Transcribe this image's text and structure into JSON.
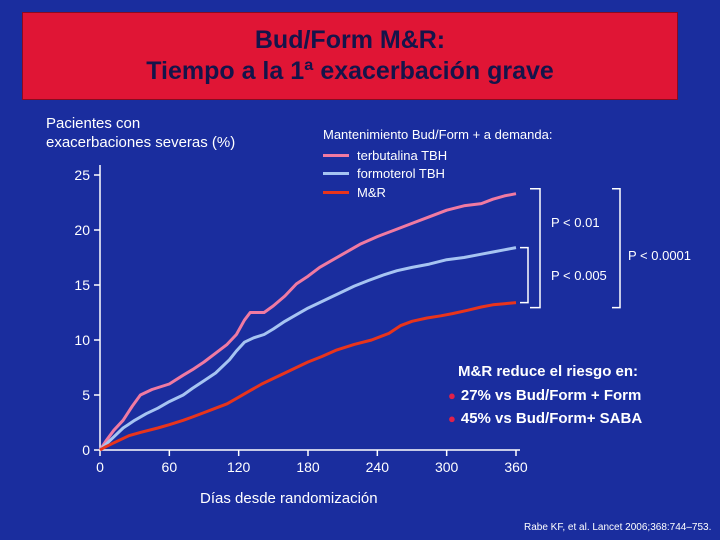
{
  "slide": {
    "title_line1": "Bud/Form M&R:",
    "title_line2": "Tiempo a la 1ª exacerbación grave",
    "y_axis_label_line1": "Pacientes con",
    "y_axis_label_line2": "exacerbaciones severas (%)",
    "x_axis_label": "Días desde randomización",
    "legend_title": "Mantenimiento Bud/Form  + a demanda:",
    "pvalues": [
      "P < 0.01",
      "P < 0.0001",
      "P < 0.005"
    ],
    "note_title": "M&R reduce el riesgo en:",
    "note_items": [
      "27% vs Bud/Form + Form",
      "45% vs Bud/Form+ SABA"
    ],
    "citation": "Rabe KF, et al. Lancet 2006;368:744–753."
  },
  "colors": {
    "background": "#1a2d9e",
    "banner": "#e01535",
    "title_text": "#15144a",
    "terbutaline": "#f07aa2",
    "formoterol": "#a6c4f2",
    "mr": "#e8341c",
    "bullet": "#e0204a"
  },
  "chart_data": {
    "type": "line",
    "title": "Tiempo a la 1ª exacerbación grave",
    "xlabel": "Días desde randomización",
    "ylabel": "Pacientes con exacerbaciones severas (%)",
    "xlim": [
      0,
      360
    ],
    "ylim": [
      0,
      25
    ],
    "xticks": [
      0,
      60,
      120,
      180,
      240,
      300,
      360
    ],
    "yticks": [
      0,
      5,
      10,
      15,
      20,
      25
    ],
    "series": [
      {
        "name": "terbutalina TBH",
        "color": "#f07aa2",
        "points": [
          [
            0,
            0
          ],
          [
            5,
            0.8
          ],
          [
            12,
            1.8
          ],
          [
            20,
            2.7
          ],
          [
            28,
            4.0
          ],
          [
            35,
            5.0
          ],
          [
            45,
            5.5
          ],
          [
            60,
            6.0
          ],
          [
            72,
            6.8
          ],
          [
            80,
            7.3
          ],
          [
            90,
            8.0
          ],
          [
            100,
            8.8
          ],
          [
            110,
            9.6
          ],
          [
            118,
            10.5
          ],
          [
            125,
            11.8
          ],
          [
            130,
            12.5
          ],
          [
            142,
            12.5
          ],
          [
            150,
            13.1
          ],
          [
            160,
            14.0
          ],
          [
            170,
            15.1
          ],
          [
            180,
            15.8
          ],
          [
            190,
            16.6
          ],
          [
            200,
            17.2
          ],
          [
            210,
            17.8
          ],
          [
            225,
            18.7
          ],
          [
            240,
            19.4
          ],
          [
            255,
            20.0
          ],
          [
            270,
            20.6
          ],
          [
            285,
            21.2
          ],
          [
            300,
            21.8
          ],
          [
            315,
            22.2
          ],
          [
            330,
            22.4
          ],
          [
            340,
            22.8
          ],
          [
            350,
            23.1
          ],
          [
            360,
            23.3
          ]
        ]
      },
      {
        "name": "formoterol TBH",
        "color": "#a6c4f2",
        "points": [
          [
            0,
            0
          ],
          [
            5,
            0.5
          ],
          [
            12,
            1.2
          ],
          [
            20,
            2.0
          ],
          [
            30,
            2.7
          ],
          [
            40,
            3.3
          ],
          [
            50,
            3.8
          ],
          [
            60,
            4.4
          ],
          [
            72,
            5.0
          ],
          [
            80,
            5.6
          ],
          [
            90,
            6.3
          ],
          [
            100,
            7.0
          ],
          [
            112,
            8.2
          ],
          [
            118,
            9.0
          ],
          [
            125,
            9.8
          ],
          [
            133,
            10.2
          ],
          [
            142,
            10.5
          ],
          [
            150,
            11.0
          ],
          [
            160,
            11.7
          ],
          [
            170,
            12.3
          ],
          [
            180,
            12.9
          ],
          [
            190,
            13.4
          ],
          [
            200,
            13.9
          ],
          [
            210,
            14.4
          ],
          [
            220,
            14.9
          ],
          [
            232,
            15.4
          ],
          [
            245,
            15.9
          ],
          [
            257,
            16.3
          ],
          [
            270,
            16.6
          ],
          [
            285,
            16.9
          ],
          [
            300,
            17.3
          ],
          [
            315,
            17.5
          ],
          [
            330,
            17.8
          ],
          [
            340,
            18.0
          ],
          [
            350,
            18.2
          ],
          [
            360,
            18.4
          ]
        ]
      },
      {
        "name": "M&R",
        "color": "#e8341c",
        "points": [
          [
            0,
            0
          ],
          [
            5,
            0.3
          ],
          [
            15,
            0.8
          ],
          [
            25,
            1.3
          ],
          [
            35,
            1.6
          ],
          [
            50,
            2.0
          ],
          [
            60,
            2.3
          ],
          [
            72,
            2.7
          ],
          [
            80,
            3.0
          ],
          [
            90,
            3.4
          ],
          [
            100,
            3.8
          ],
          [
            110,
            4.2
          ],
          [
            120,
            4.8
          ],
          [
            130,
            5.4
          ],
          [
            140,
            6.0
          ],
          [
            150,
            6.5
          ],
          [
            160,
            7.0
          ],
          [
            170,
            7.5
          ],
          [
            180,
            8.0
          ],
          [
            192,
            8.5
          ],
          [
            205,
            9.1
          ],
          [
            220,
            9.6
          ],
          [
            235,
            10.0
          ],
          [
            250,
            10.6
          ],
          [
            260,
            11.3
          ],
          [
            270,
            11.7
          ],
          [
            283,
            12.0
          ],
          [
            295,
            12.2
          ],
          [
            305,
            12.4
          ],
          [
            318,
            12.7
          ],
          [
            330,
            13.0
          ],
          [
            340,
            13.2
          ],
          [
            350,
            13.3
          ],
          [
            360,
            13.4
          ]
        ]
      }
    ]
  }
}
